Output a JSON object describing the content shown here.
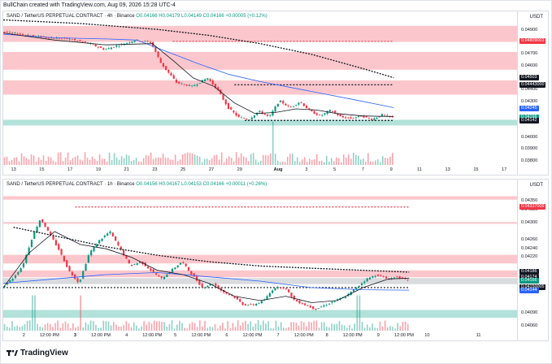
{
  "caption": "BullChain created with TradingView.com, Aug 09, 2026 15:28 UTC-4",
  "brand": "TradingView",
  "colors": {
    "up": "#089981",
    "down": "#f23645",
    "sma": "#131722",
    "ema": "#2962ff",
    "zone_red": "#f7525f",
    "zone_green": "#22ab94",
    "zone_gray": "#9598a1"
  },
  "chart_data": [
    {
      "type": "candlestick",
      "title": "SAND / TetherUS PERPETUAL CONTRACT · 4h · Binance",
      "ohlc_label": "O0.04166 H0.04179 L0.04149 C0.04166 +0.00005 (+0.12%)",
      "unit": "USDT",
      "ylim": [
        0.03767,
        0.0498
      ],
      "y_ticks": [
        {
          "value": 0.049,
          "label": "0.04900"
        },
        {
          "value": 0.047,
          "label": "0.04700"
        },
        {
          "value": 0.046,
          "label": "0.04600"
        },
        {
          "value": 0.044,
          "label": "0.04400"
        },
        {
          "value": 0.043,
          "label": "0.04300"
        },
        {
          "value": 0.04,
          "label": "0.04000"
        },
        {
          "value": 0.039,
          "label": "0.03900"
        },
        {
          "value": 0.038,
          "label": "0.03800"
        }
      ],
      "price_tags": [
        {
          "value": 0.04809,
          "label": "0.04809003",
          "color": "#f23645"
        },
        {
          "value": 0.04503,
          "label": "0.04503",
          "color": "#131722"
        },
        {
          "value": 0.04443,
          "label": "0.04443000",
          "color": "#131722"
        },
        {
          "value": 0.04245,
          "label": "0.04245",
          "color": "#2962ff"
        },
        {
          "value": 0.04166,
          "label": "0.04166",
          "color": "#089981"
        },
        {
          "value": 0.04142,
          "label": "0.04142",
          "color": "#131722"
        }
      ],
      "x_ticks": [
        {
          "pos": 0.02,
          "label": "13",
          "bold": false
        },
        {
          "pos": 0.075,
          "label": "15",
          "bold": false
        },
        {
          "pos": 0.13,
          "label": "17",
          "bold": false
        },
        {
          "pos": 0.185,
          "label": "19",
          "bold": false
        },
        {
          "pos": 0.24,
          "label": "21",
          "bold": false
        },
        {
          "pos": 0.295,
          "label": "23",
          "bold": false
        },
        {
          "pos": 0.35,
          "label": "25",
          "bold": false
        },
        {
          "pos": 0.405,
          "label": "27",
          "bold": false
        },
        {
          "pos": 0.46,
          "label": "29",
          "bold": false
        },
        {
          "pos": 0.535,
          "label": "Aug",
          "bold": true
        },
        {
          "pos": 0.59,
          "label": "3",
          "bold": false
        },
        {
          "pos": 0.645,
          "label": "5",
          "bold": false
        },
        {
          "pos": 0.7,
          "label": "7",
          "bold": false
        },
        {
          "pos": 0.755,
          "label": "9",
          "bold": false
        },
        {
          "pos": 0.81,
          "label": "11",
          "bold": false
        },
        {
          "pos": 0.865,
          "label": "13",
          "bold": false
        },
        {
          "pos": 0.92,
          "label": "15",
          "bold": false
        },
        {
          "pos": 0.975,
          "label": "17",
          "bold": false
        }
      ],
      "zones": [
        {
          "low": 0.04805,
          "high": 0.0494,
          "color": "red"
        },
        {
          "low": 0.0457,
          "high": 0.0472,
          "color": "red"
        },
        {
          "low": 0.0436,
          "high": 0.0448,
          "color": "red"
        },
        {
          "low": 0.041,
          "high": 0.04148,
          "color": "green"
        }
      ],
      "levels": [
        {
          "value": 0.04809,
          "color": "red",
          "dash": true,
          "from": 0.33,
          "to": 0.76
        },
        {
          "value": 0.04443,
          "color": "black",
          "dash": true,
          "from": 0.45,
          "to": 0.76
        },
        {
          "value": 0.04142,
          "color": "black",
          "dash": true,
          "from": 0.47,
          "to": 0.76
        }
      ],
      "anchors": [
        [
          0.0,
          0.0489
        ],
        [
          0.05,
          0.0486
        ],
        [
          0.09,
          0.0484
        ],
        [
          0.13,
          0.0483
        ],
        [
          0.17,
          0.0479
        ],
        [
          0.2,
          0.0474
        ],
        [
          0.23,
          0.0478
        ],
        [
          0.26,
          0.0482
        ],
        [
          0.29,
          0.048
        ],
        [
          0.31,
          0.0462
        ],
        [
          0.34,
          0.0446
        ],
        [
          0.37,
          0.0443
        ],
        [
          0.4,
          0.045
        ],
        [
          0.42,
          0.044
        ],
        [
          0.44,
          0.0425
        ],
        [
          0.46,
          0.0417
        ],
        [
          0.48,
          0.0415
        ],
        [
          0.5,
          0.0422
        ],
        [
          0.52,
          0.0417
        ],
        [
          0.54,
          0.0431
        ],
        [
          0.56,
          0.0425
        ],
        [
          0.58,
          0.043
        ],
        [
          0.6,
          0.0422
        ],
        [
          0.62,
          0.0418
        ],
        [
          0.64,
          0.0423
        ],
        [
          0.66,
          0.0417
        ],
        [
          0.68,
          0.0416
        ],
        [
          0.7,
          0.0418
        ],
        [
          0.72,
          0.0415
        ],
        [
          0.74,
          0.0419
        ],
        [
          0.76,
          0.04166
        ]
      ],
      "sma": [
        [
          0.0,
          0.0488
        ],
        [
          0.1,
          0.0482
        ],
        [
          0.2,
          0.0478
        ],
        [
          0.29,
          0.0479
        ],
        [
          0.33,
          0.0465
        ],
        [
          0.37,
          0.045
        ],
        [
          0.41,
          0.0443
        ],
        [
          0.45,
          0.0429
        ],
        [
          0.49,
          0.042
        ],
        [
          0.53,
          0.0421
        ],
        [
          0.57,
          0.0424
        ],
        [
          0.61,
          0.0423
        ],
        [
          0.65,
          0.042
        ],
        [
          0.7,
          0.0418
        ],
        [
          0.76,
          0.04175
        ]
      ],
      "ema": [
        [
          0.0,
          0.0487
        ],
        [
          0.1,
          0.0484
        ],
        [
          0.2,
          0.0483
        ],
        [
          0.26,
          0.0482
        ],
        [
          0.32,
          0.0472
        ],
        [
          0.38,
          0.0462
        ],
        [
          0.44,
          0.0453
        ],
        [
          0.5,
          0.0447
        ],
        [
          0.56,
          0.0442
        ],
        [
          0.62,
          0.0437
        ],
        [
          0.68,
          0.0432
        ],
        [
          0.76,
          0.0425
        ]
      ],
      "long_ma": [
        [
          0.0,
          0.0499
        ],
        [
          0.15,
          0.0496
        ],
        [
          0.3,
          0.0491
        ],
        [
          0.4,
          0.0486
        ],
        [
          0.5,
          0.0479
        ],
        [
          0.6,
          0.047
        ],
        [
          0.7,
          0.0458
        ],
        [
          0.76,
          0.04503
        ]
      ],
      "volume": {
        "spikes": [
          0.525
        ],
        "max_height": 0.3
      }
    },
    {
      "type": "candlestick",
      "title": "SAND / TetherUS PERPETUAL CONTRACT · 1h · Binance",
      "ohlc_label": "O0.04156 H0.04167 L0.04153 C0.04166 +0.00011 (+0.26%)",
      "unit": "USDT",
      "ylim": [
        0.0405,
        0.04378
      ],
      "y_ticks": [
        {
          "value": 0.0435,
          "label": "0.04350"
        },
        {
          "value": 0.0433,
          "label": "0.04330"
        },
        {
          "value": 0.043,
          "label": "0.04300"
        },
        {
          "value": 0.0426,
          "label": "0.04260"
        },
        {
          "value": 0.0424,
          "label": "0.04240"
        },
        {
          "value": 0.0422,
          "label": "0.04220"
        },
        {
          "value": 0.0409,
          "label": "0.04090"
        },
        {
          "value": 0.0406,
          "label": "0.04060"
        }
      ],
      "price_tags": [
        {
          "value": 0.04337,
          "label": "0.04337009",
          "color": "#f23645"
        },
        {
          "value": 0.04186,
          "label": "0.04186",
          "color": "#131722"
        },
        {
          "value": 0.04174,
          "label": "0.04174",
          "color": "#131722"
        },
        {
          "value": 0.04166,
          "label": "0.04166",
          "color": "#089981"
        },
        {
          "value": 0.0415,
          "label": "0.04150005",
          "color": "#131722"
        },
        {
          "value": 0.04144,
          "label": "0.04144",
          "color": "#2962ff"
        }
      ],
      "x_ticks": [
        {
          "pos": 0.04,
          "label": "2",
          "bold": false
        },
        {
          "pos": 0.09,
          "label": "12:00 PM",
          "bold": false
        },
        {
          "pos": 0.14,
          "label": "3",
          "bold": true
        },
        {
          "pos": 0.19,
          "label": "12:00 PM",
          "bold": false
        },
        {
          "pos": 0.24,
          "label": "4",
          "bold": false
        },
        {
          "pos": 0.29,
          "label": "12:00 PM",
          "bold": false
        },
        {
          "pos": 0.335,
          "label": "5",
          "bold": false
        },
        {
          "pos": 0.385,
          "label": "12:00 PM",
          "bold": false
        },
        {
          "pos": 0.435,
          "label": "6",
          "bold": false
        },
        {
          "pos": 0.485,
          "label": "12:00 PM",
          "bold": false
        },
        {
          "pos": 0.535,
          "label": "7",
          "bold": false
        },
        {
          "pos": 0.585,
          "label": "12:00 PM",
          "bold": false
        },
        {
          "pos": 0.63,
          "label": "8",
          "bold": false
        },
        {
          "pos": 0.68,
          "label": "12:00 PM",
          "bold": false
        },
        {
          "pos": 0.73,
          "label": "9",
          "bold": false
        },
        {
          "pos": 0.78,
          "label": "12:00 PM",
          "bold": false
        },
        {
          "pos": 0.825,
          "label": "10",
          "bold": false
        },
        {
          "pos": 0.925,
          "label": "11",
          "bold": false
        }
      ],
      "zones": [
        {
          "low": 0.04354,
          "high": 0.04362,
          "color": "red"
        },
        {
          "low": 0.04298,
          "high": 0.04302,
          "color": "red"
        },
        {
          "low": 0.04206,
          "high": 0.04226,
          "color": "red"
        },
        {
          "low": 0.04174,
          "high": 0.0419,
          "color": "red"
        },
        {
          "low": 0.04158,
          "high": 0.04172,
          "color": "gray"
        },
        {
          "low": 0.0408,
          "high": 0.04098,
          "color": "green"
        }
      ],
      "levels": [
        {
          "value": 0.04337,
          "color": "red",
          "dash": true,
          "from": 0.14,
          "to": 0.79
        },
        {
          "value": 0.0415,
          "color": "black",
          "dash": true,
          "from": 0.0,
          "to": 0.79
        }
      ],
      "anchors": [
        [
          0.0,
          0.0415
        ],
        [
          0.02,
          0.0417
        ],
        [
          0.04,
          0.042
        ],
        [
          0.06,
          0.0427
        ],
        [
          0.075,
          0.0431
        ],
        [
          0.09,
          0.0428
        ],
        [
          0.11,
          0.0424
        ],
        [
          0.13,
          0.0419
        ],
        [
          0.15,
          0.0416
        ],
        [
          0.17,
          0.0423
        ],
        [
          0.19,
          0.0426
        ],
        [
          0.21,
          0.0428
        ],
        [
          0.23,
          0.0424
        ],
        [
          0.25,
          0.042
        ],
        [
          0.27,
          0.0421
        ],
        [
          0.29,
          0.0419
        ],
        [
          0.31,
          0.0417
        ],
        [
          0.33,
          0.0419
        ],
        [
          0.35,
          0.0421
        ],
        [
          0.37,
          0.0418
        ],
        [
          0.39,
          0.0415
        ],
        [
          0.41,
          0.0416
        ],
        [
          0.43,
          0.0414
        ],
        [
          0.45,
          0.0413
        ],
        [
          0.47,
          0.0411
        ],
        [
          0.49,
          0.0411
        ],
        [
          0.51,
          0.0412
        ],
        [
          0.53,
          0.0415
        ],
        [
          0.55,
          0.0415
        ],
        [
          0.57,
          0.0412
        ],
        [
          0.59,
          0.0411
        ],
        [
          0.61,
          0.041
        ],
        [
          0.63,
          0.0411
        ],
        [
          0.65,
          0.0412
        ],
        [
          0.67,
          0.0413
        ],
        [
          0.69,
          0.0415
        ],
        [
          0.71,
          0.0417
        ],
        [
          0.73,
          0.0418
        ],
        [
          0.75,
          0.0417
        ],
        [
          0.77,
          0.04175
        ],
        [
          0.79,
          0.04166
        ]
      ],
      "sma": [
        [
          0.0,
          0.0415
        ],
        [
          0.05,
          0.0423
        ],
        [
          0.1,
          0.0428
        ],
        [
          0.15,
          0.0425
        ],
        [
          0.2,
          0.0424
        ],
        [
          0.25,
          0.0422
        ],
        [
          0.3,
          0.0419
        ],
        [
          0.35,
          0.0418
        ],
        [
          0.4,
          0.0416
        ],
        [
          0.45,
          0.0413
        ],
        [
          0.5,
          0.0412
        ],
        [
          0.55,
          0.0413
        ],
        [
          0.6,
          0.04115
        ],
        [
          0.65,
          0.0412
        ],
        [
          0.7,
          0.0415
        ],
        [
          0.75,
          0.0417
        ],
        [
          0.79,
          0.04172
        ]
      ],
      "ema": [
        [
          0.0,
          0.0416
        ],
        [
          0.1,
          0.0417
        ],
        [
          0.2,
          0.0418
        ],
        [
          0.3,
          0.04185
        ],
        [
          0.4,
          0.04175
        ],
        [
          0.5,
          0.04165
        ],
        [
          0.6,
          0.0415
        ],
        [
          0.7,
          0.04145
        ],
        [
          0.79,
          0.04144
        ]
      ],
      "long_ma": [
        [
          0.02,
          0.0429
        ],
        [
          0.1,
          0.0427
        ],
        [
          0.2,
          0.04245
        ],
        [
          0.3,
          0.04225
        ],
        [
          0.4,
          0.0421
        ],
        [
          0.5,
          0.042
        ],
        [
          0.6,
          0.04195
        ],
        [
          0.7,
          0.0419
        ],
        [
          0.79,
          0.04186
        ]
      ],
      "volume": {
        "spikes": [
          0.06,
          0.15,
          0.69
        ],
        "max_height": 0.25
      }
    }
  ]
}
